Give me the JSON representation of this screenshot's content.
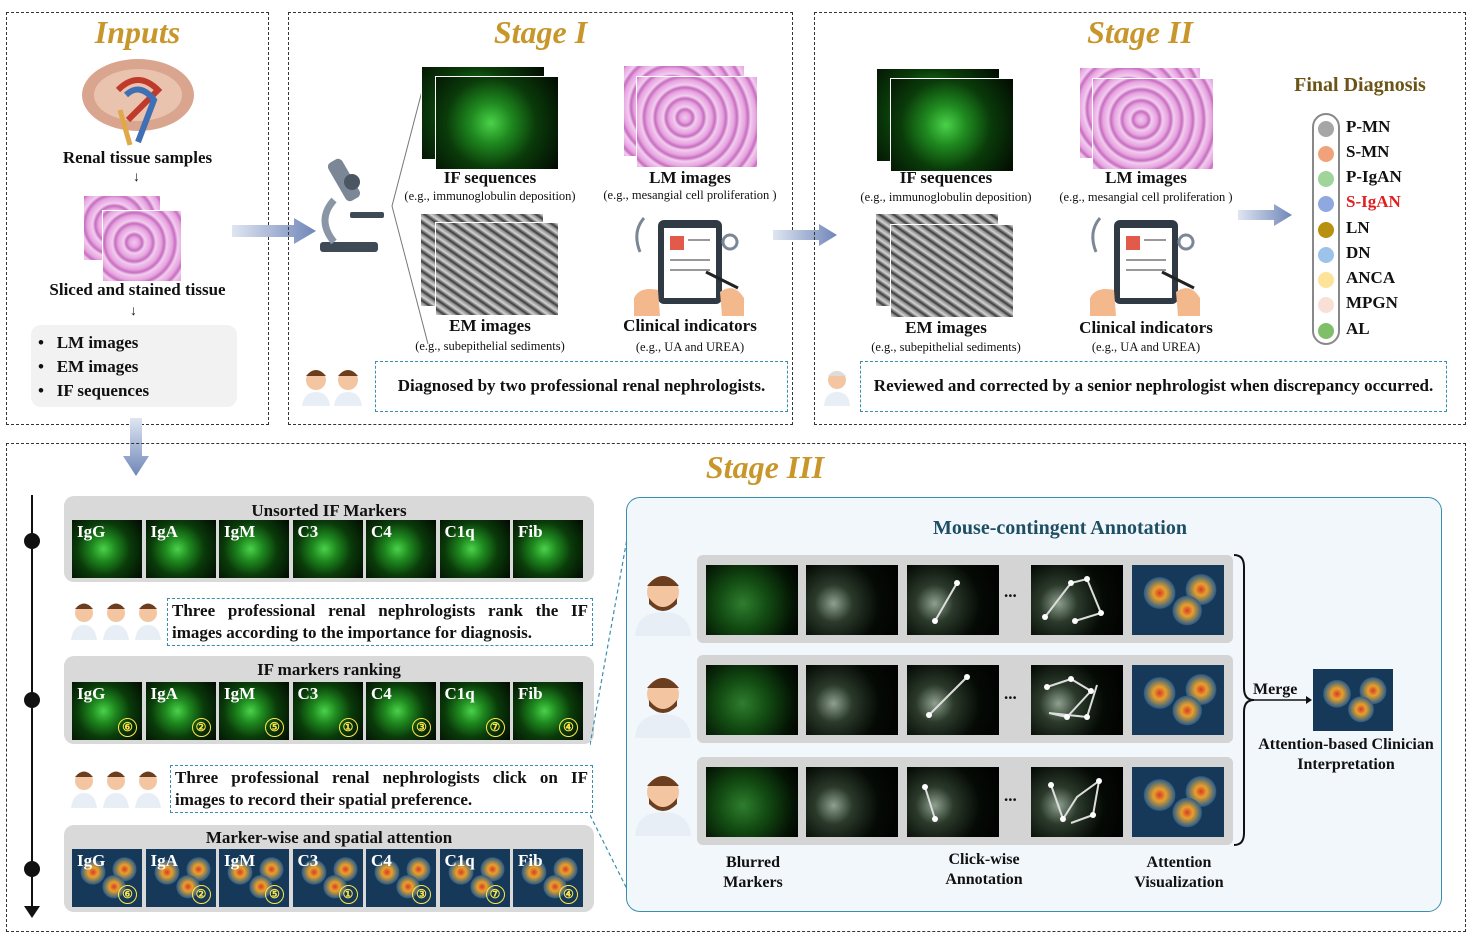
{
  "inputs": {
    "title": "Inputs",
    "renal_label": "Renal tissue samples",
    "sliced_label": "Sliced and stained tissue",
    "list": [
      "LM images",
      "EM images",
      "IF sequences"
    ]
  },
  "stage1": {
    "title": "Stage I",
    "if_label": "IF sequences",
    "if_sub": "(e.g., immunoglobulin deposition)",
    "lm_label": "LM images",
    "lm_sub": "(e.g., mesangial cell proliferation )",
    "em_label": "EM images",
    "em_sub": "(e.g., subepithelial sediments)",
    "clin_label": "Clinical indicators",
    "clin_sub": "(e.g., UA and UREA)",
    "note": "Diagnosed by two professional renal nephrologists."
  },
  "stage2": {
    "title": "Stage II",
    "if_label": "IF sequences",
    "if_sub": "(e.g., immunoglobulin deposition)",
    "lm_label": "LM images",
    "lm_sub": "(e.g., mesangial cell proliferation )",
    "em_label": "EM images",
    "em_sub": "(e.g., subepithelial sediments)",
    "clin_label": "Clinical indicators",
    "clin_sub": "(e.g., UA and UREA)",
    "note": "Reviewed and corrected by a senior nephrologist when discrepancy occurred."
  },
  "final_diagnosis": {
    "title": "Final Diagnosis",
    "items": [
      {
        "label": "P-MN",
        "color": "#a6a6a6",
        "text_color": "#111111"
      },
      {
        "label": "S-MN",
        "color": "#f0a37a",
        "text_color": "#111111"
      },
      {
        "label": "P-IgAN",
        "color": "#9fd49a",
        "text_color": "#111111"
      },
      {
        "label": "S-IgAN",
        "color": "#8fa8e0",
        "text_color": "#e02020"
      },
      {
        "label": "LN",
        "color": "#b8900f",
        "text_color": "#111111"
      },
      {
        "label": "DN",
        "color": "#9ec3ea",
        "text_color": "#111111"
      },
      {
        "label": "ANCA",
        "color": "#fde29a",
        "text_color": "#111111"
      },
      {
        "label": "MPGN",
        "color": "#f8e0d6",
        "text_color": "#111111"
      },
      {
        "label": "AL",
        "color": "#7fbf6a",
        "text_color": "#111111"
      }
    ]
  },
  "stage3": {
    "title": "Stage III",
    "unsorted_title": "Unsorted IF Markers",
    "markers": [
      "IgG",
      "IgA",
      "IgM",
      "C3",
      "C4",
      "C1q",
      "Fib"
    ],
    "rank_text": "Three professional renal nephrologists rank the IF images according to the importance for diagnosis.",
    "ranking_title": "IF markers ranking",
    "ranks": [
      "⑥",
      "②",
      "⑤",
      "①",
      "③",
      "⑦",
      "④"
    ],
    "click_text": "Three professional renal nephrologists click on IF images to record their spatial preference.",
    "attention_title": "Marker-wise and spatial attention",
    "mouse_title": "Mouse-contingent Annotation",
    "ellipsis": "...",
    "merge": "Merge",
    "result_label": "Attention-based Clinician Interpretation",
    "col_blurred": "Blurred Markers",
    "col_click": "Click-wise Annotation",
    "col_attention": "Attention Visualization"
  },
  "colors": {
    "stage_title": "#c8962a",
    "final_title": "#6b5416",
    "mouse_title": "#1d4e63",
    "panel_border": "#3a8fb0",
    "arrow": "#7f97bf"
  }
}
